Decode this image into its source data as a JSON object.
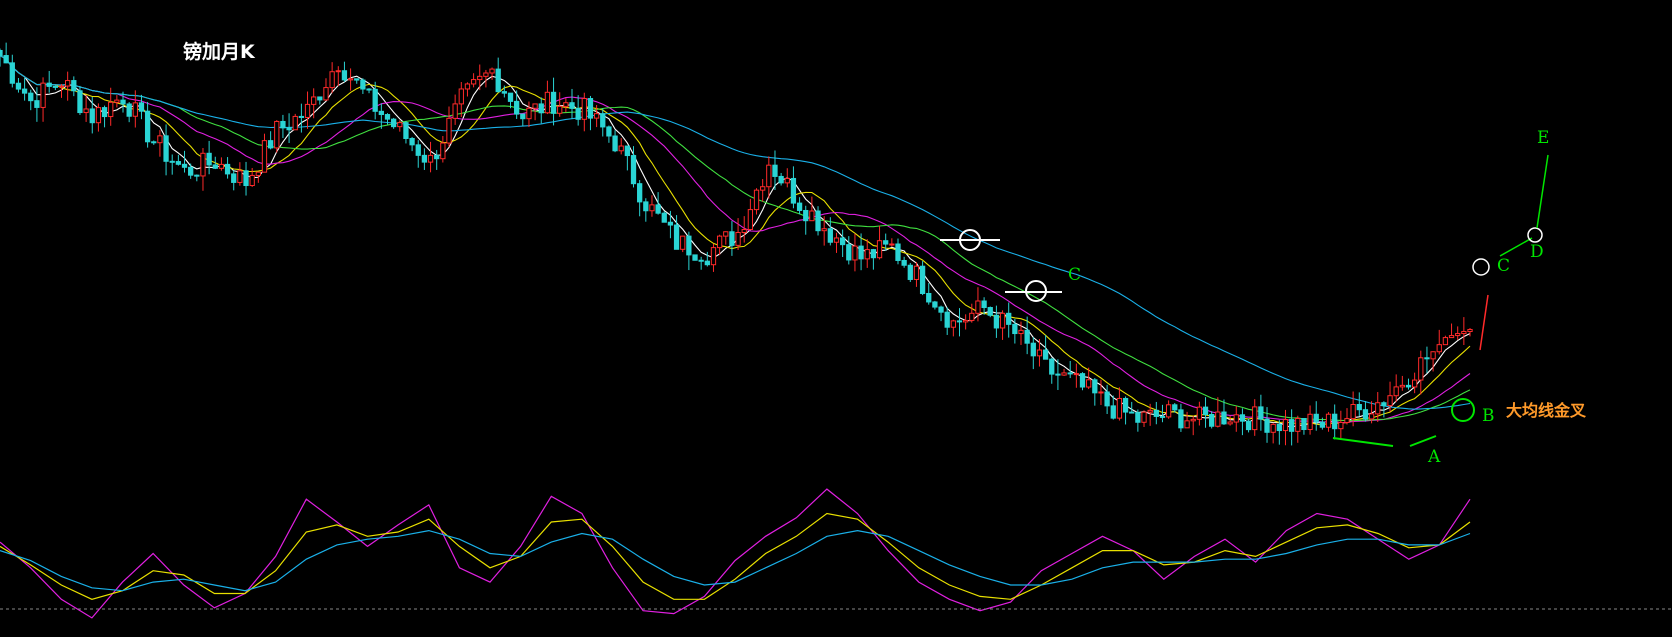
{
  "title": "镑加月K",
  "colors": {
    "background": "#000000",
    "candle_up": "#ff2a2a",
    "candle_down": "#2ad4d4",
    "ma5": "#ffffff",
    "ma10": "#e8e000",
    "ma20": "#e020e0",
    "ma30": "#40e040",
    "ma60": "#1ab0e8",
    "osc_fast": "#e020e0",
    "osc_mid": "#e8e000",
    "osc_slow": "#1ab0e8",
    "annotation": "#00e600",
    "annotation_text": "#ff9a2a"
  },
  "annotations": {
    "c_mid": "C",
    "a": "A",
    "b": "B",
    "c_right": "C",
    "d": "D",
    "e": "E",
    "golden_cross": "大均线金叉"
  },
  "chart_data": [
    {
      "type": "candlestick",
      "title": "镑加月K",
      "period": "monthly",
      "xlabel": "",
      "ylabel": "",
      "grid": false,
      "series_shown": [
        "candles",
        "MA5 (white)",
        "MA10 (yellow)",
        "MA20 (magenta)",
        "MA30 (green)",
        "MA60 (blue)"
      ],
      "close_path_approx": [
        [
          0,
          1.95
        ],
        [
          5,
          1.86
        ],
        [
          10,
          1.9
        ],
        [
          15,
          1.83
        ],
        [
          20,
          1.87
        ],
        [
          25,
          1.78
        ],
        [
          30,
          1.72
        ],
        [
          35,
          1.74
        ],
        [
          40,
          1.7
        ],
        [
          45,
          1.8
        ],
        [
          50,
          1.84
        ],
        [
          55,
          1.94
        ],
        [
          60,
          1.86
        ],
        [
          65,
          1.8
        ],
        [
          70,
          1.74
        ],
        [
          75,
          1.86
        ],
        [
          80,
          1.92
        ],
        [
          85,
          1.83
        ],
        [
          90,
          1.86
        ],
        [
          95,
          1.84
        ],
        [
          100,
          1.78
        ],
        [
          105,
          1.66
        ],
        [
          110,
          1.58
        ],
        [
          115,
          1.56
        ],
        [
          120,
          1.6
        ],
        [
          125,
          1.74
        ],
        [
          130,
          1.66
        ],
        [
          135,
          1.6
        ],
        [
          140,
          1.55
        ],
        [
          145,
          1.57
        ],
        [
          150,
          1.5
        ],
        [
          155,
          1.42
        ],
        [
          160,
          1.45
        ],
        [
          165,
          1.4
        ],
        [
          170,
          1.33
        ],
        [
          175,
          1.3
        ],
        [
          180,
          1.26
        ],
        [
          185,
          1.23
        ],
        [
          190,
          1.24
        ],
        [
          195,
          1.23
        ],
        [
          200,
          1.24
        ],
        [
          205,
          1.23
        ],
        [
          210,
          1.22
        ],
        [
          215,
          1.22
        ],
        [
          220,
          1.24
        ],
        [
          225,
          1.27
        ],
        [
          230,
          1.33
        ],
        [
          235,
          1.38
        ]
      ],
      "projection": {
        "from": [
          235,
          1.38
        ],
        "to": [
          240,
          1.47
        ]
      }
    },
    {
      "type": "line",
      "title": "",
      "series": [
        {
          "color": "magenta",
          "values": [
            58,
            40,
            18,
            5,
            30,
            50,
            28,
            12,
            22,
            48,
            88,
            72,
            55,
            70,
            84,
            40,
            30,
            55,
            90,
            78,
            40,
            10,
            8,
            20,
            45,
            62,
            75,
            95,
            78,
            52,
            30,
            18,
            10,
            16,
            38,
            50,
            62,
            52,
            32,
            48,
            60,
            44,
            66,
            78,
            74,
            60,
            46,
            56,
            88
          ]
        },
        {
          "color": "yellow",
          "values": [
            55,
            42,
            28,
            18,
            24,
            38,
            35,
            22,
            22,
            38,
            65,
            70,
            62,
            65,
            74,
            55,
            40,
            48,
            72,
            74,
            55,
            30,
            18,
            18,
            32,
            50,
            62,
            78,
            74,
            58,
            40,
            28,
            20,
            18,
            28,
            40,
            52,
            52,
            42,
            44,
            52,
            48,
            58,
            68,
            70,
            64,
            54,
            56,
            72
          ]
        },
        {
          "color": "blue",
          "values": [
            52,
            45,
            34,
            26,
            24,
            30,
            32,
            28,
            24,
            30,
            46,
            56,
            60,
            62,
            66,
            60,
            50,
            48,
            58,
            64,
            60,
            46,
            34,
            28,
            30,
            40,
            50,
            62,
            66,
            62,
            52,
            42,
            34,
            28,
            28,
            32,
            40,
            44,
            44,
            44,
            46,
            46,
            50,
            56,
            60,
            60,
            56,
            56,
            64
          ]
        }
      ]
    }
  ]
}
